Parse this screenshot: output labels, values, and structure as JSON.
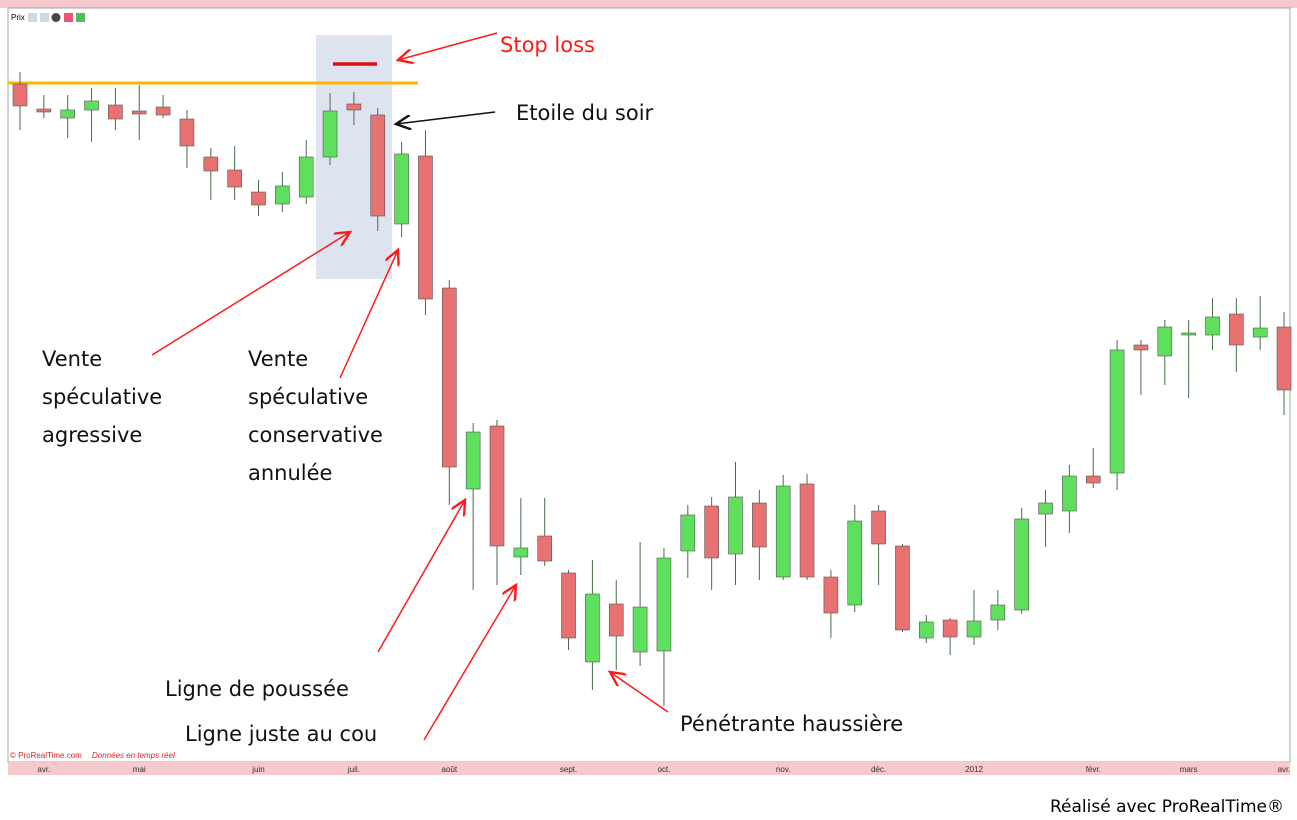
{
  "chart_data": {
    "type": "candlestick",
    "panel_label": "Prix",
    "copyright": "© ProRealTime.com",
    "realtime_note": "Données en temps réel",
    "footer": "Réalisé avec ProRealTime®",
    "up_color": "#5ee05e",
    "down_color": "#e87272",
    "ylim": [
      0,
      760
    ],
    "categories": [
      null,
      "avr.",
      null,
      null,
      null,
      "mai",
      null,
      null,
      null,
      null,
      "juin",
      null,
      null,
      null,
      "juil.",
      null,
      null,
      null,
      "août",
      null,
      null,
      null,
      null,
      "sept.",
      null,
      null,
      null,
      "oct.",
      null,
      null,
      null,
      null,
      "nov.",
      null,
      null,
      null,
      "déc.",
      null,
      null,
      null,
      "2012",
      null,
      null,
      null,
      null,
      "févr.",
      null,
      null,
      null,
      "mars",
      null,
      null,
      null,
      "avr."
    ],
    "open": [
      676,
      651,
      642,
      650,
      655,
      649,
      653,
      641,
      603,
      590,
      568,
      556,
      563,
      603,
      656,
      645,
      536,
      604,
      472,
      271,
      334,
      203,
      224,
      187,
      98,
      156,
      108,
      109,
      209,
      254,
      206,
      257,
      183,
      276,
      183,
      155,
      249,
      214,
      122,
      140,
      123,
      140,
      150,
      246,
      249,
      284,
      287,
      415,
      404,
      425,
      425,
      446,
      423,
      433
    ],
    "high": [
      688,
      665,
      665,
      672,
      672,
      675,
      665,
      650,
      612,
      614,
      580,
      588,
      620,
      667,
      668,
      652,
      618,
      630,
      480,
      337,
      340,
      262,
      262,
      190,
      200,
      180,
      218,
      212,
      255,
      263,
      298,
      270,
      285,
      286,
      190,
      255,
      255,
      216,
      145,
      142,
      170,
      170,
      252,
      270,
      295,
      312,
      420,
      420,
      440,
      440,
      462,
      462,
      464,
      448
    ],
    "low": [
      630,
      642,
      622,
      618,
      630,
      620,
      642,
      592,
      560,
      560,
      544,
      548,
      556,
      595,
      635,
      529,
      523,
      445,
      255,
      170,
      175,
      185,
      194,
      110,
      70,
      90,
      94,
      54,
      182,
      170,
      175,
      180,
      180,
      180,
      122,
      148,
      175,
      128,
      117,
      105,
      115,
      130,
      146,
      213,
      227,
      272,
      270,
      365,
      375,
      362,
      410,
      388,
      410,
      345
    ],
    "close": [
      654,
      648,
      650,
      659,
      641,
      646,
      645,
      614,
      589,
      573,
      555,
      574,
      603,
      649,
      650,
      544,
      606,
      461,
      293,
      328,
      214,
      212,
      199,
      122,
      166,
      124,
      153,
      202,
      245,
      202,
      263,
      213,
      274,
      183,
      147,
      239,
      216,
      130,
      138,
      123,
      139,
      155,
      241,
      257,
      284,
      277,
      410,
      410,
      433,
      427,
      443,
      415,
      432,
      370
    ],
    "annotations": [
      {
        "lines": [
          "Stop loss"
        ],
        "color": "#ff1a1a"
      },
      {
        "lines": [
          "Etoile du soir"
        ],
        "color": "#111111"
      },
      {
        "lines": [
          "Vente",
          "spéculative",
          "agressive"
        ],
        "color": "#111111"
      },
      {
        "lines": [
          "Vente",
          "spéculative",
          "conservative",
          "annulée"
        ],
        "color": "#111111"
      },
      {
        "lines": [
          "Ligne de poussée"
        ],
        "color": "#111111"
      },
      {
        "lines": [
          "Ligne juste au cou"
        ],
        "color": "#111111"
      },
      {
        "lines": [
          "Pénétrante haussière"
        ],
        "color": "#111111"
      }
    ]
  }
}
